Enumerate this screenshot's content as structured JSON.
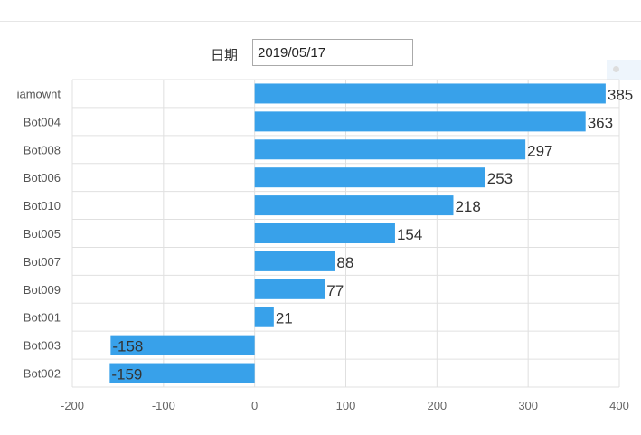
{
  "filter": {
    "date_label": "日期",
    "date_value": "2019/05/17"
  },
  "colors": {
    "bar": "#38a1ea",
    "grid": "#e0e0e0"
  },
  "chart_data": {
    "type": "bar",
    "orientation": "horizontal",
    "categories": [
      "iamownt",
      "Bot004",
      "Bot008",
      "Bot006",
      "Bot010",
      "Bot005",
      "Bot007",
      "Bot009",
      "Bot001",
      "Bot003",
      "Bot002"
    ],
    "values": [
      385,
      363,
      297,
      253,
      218,
      154,
      88,
      77,
      21,
      -158,
      -159
    ],
    "xlim": [
      -200,
      400
    ],
    "xticks": [
      "-200",
      "-100",
      "0",
      "100",
      "200",
      "300",
      "400"
    ],
    "grid": true,
    "data_labels": true
  }
}
